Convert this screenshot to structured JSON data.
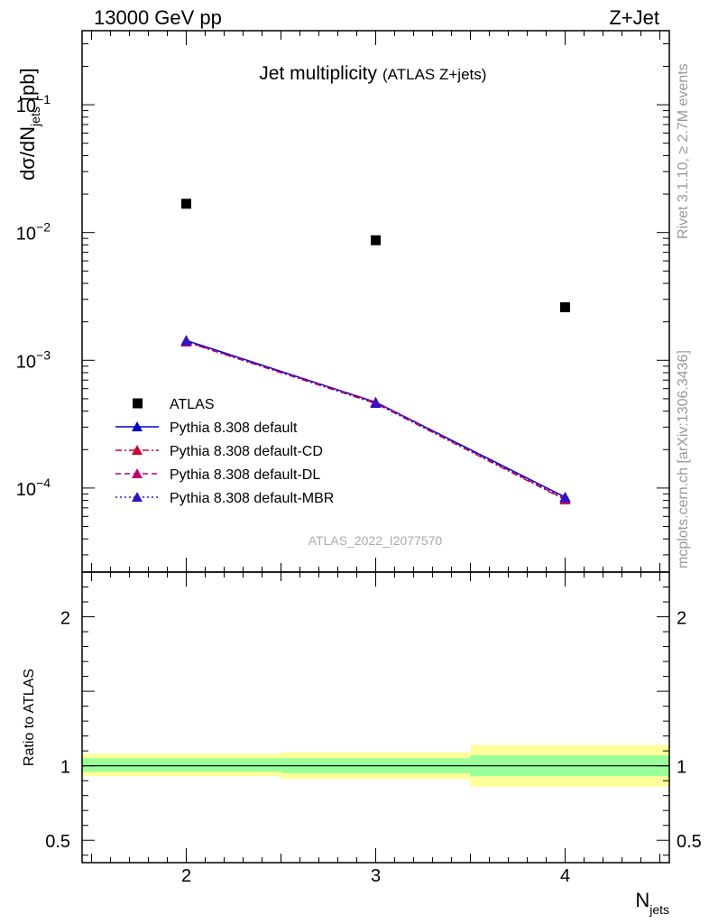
{
  "header": {
    "left": "13000 GeV pp",
    "right": "Z+Jet"
  },
  "side_labels": {
    "rivet": "Rivet 3.1.10, ≥ 2.7M events",
    "mcplots": "mcplots.cern.ch [arXiv:1306.3436]"
  },
  "chart_data": [
    {
      "type": "scatter",
      "title": "Jet multiplicity",
      "subtitle": "(ATLAS Z+jets)",
      "watermark": "ATLAS_2022_I2077570",
      "ylabel_main": "dσ/dN",
      "ylabel_sub": "jets",
      "ylabel_unit": "[pb]",
      "yscale": "log",
      "ylim": [
        2.2e-05,
        0.38
      ],
      "xlim": [
        1.45,
        4.55
      ],
      "legend_placement": "lower-left",
      "y_ticks": [
        {
          "value": 0.1,
          "base": "10",
          "exp": "−1"
        },
        {
          "value": 0.01,
          "base": "10",
          "exp": "−2"
        },
        {
          "value": 0.001,
          "base": "10",
          "exp": "−3"
        },
        {
          "value": 0.0001,
          "base": "10",
          "exp": "−4"
        }
      ],
      "series": [
        {
          "name": "ATLAS",
          "color": "#000000",
          "marker": "square",
          "line": "none",
          "x": [
            2,
            3,
            4
          ],
          "y": [
            0.0168,
            0.0087,
            0.0026
          ]
        },
        {
          "name": "Pythia 8.308 default",
          "color": "#0000cc",
          "marker": "triangle",
          "line": "solid",
          "x": [
            2,
            3,
            4
          ],
          "y": [
            0.00143,
            0.00047,
            8.5e-05
          ]
        },
        {
          "name": "Pythia 8.308 default-CD",
          "color": "#cc0033",
          "marker": "triangle",
          "line": "dashdot",
          "x": [
            2,
            3,
            4
          ],
          "y": [
            0.00139,
            0.00046,
            8.1e-05
          ]
        },
        {
          "name": "Pythia 8.308 default-DL",
          "color": "#bb0077",
          "marker": "triangle",
          "line": "dashed",
          "x": [
            2,
            3,
            4
          ],
          "y": [
            0.0014,
            0.00047,
            8.2e-05
          ]
        },
        {
          "name": "Pythia 8.308 default-MBR",
          "color": "#3311cc",
          "marker": "triangle",
          "line": "dotted",
          "x": [
            2,
            3,
            4
          ],
          "y": [
            0.00142,
            0.00046,
            8.4e-05
          ]
        }
      ]
    },
    {
      "type": "area",
      "ylabel": "Ratio to ATLAS",
      "xlabel_main": "N",
      "xlabel_sub": "jets",
      "xlim": [
        1.45,
        4.55
      ],
      "ylim": [
        0.35,
        2.3
      ],
      "x_ticks": [
        "2",
        "3",
        "4"
      ],
      "y_ticks": [
        "0.5",
        "1",
        "2"
      ],
      "reference": 1,
      "bands": [
        {
          "x_low": 1.45,
          "x_high": 2.5,
          "stat_low": 0.96,
          "stat_high": 1.05,
          "total_low": 0.93,
          "total_high": 1.08
        },
        {
          "x_low": 2.5,
          "x_high": 3.5,
          "stat_low": 0.95,
          "stat_high": 1.05,
          "total_low": 0.91,
          "total_high": 1.09
        },
        {
          "x_low": 3.5,
          "x_high": 4.55,
          "stat_low": 0.93,
          "stat_high": 1.07,
          "total_low": 0.86,
          "total_high": 1.14
        }
      ],
      "band_colors": {
        "stat": "#99ff99",
        "total": "#ffff99"
      }
    }
  ]
}
